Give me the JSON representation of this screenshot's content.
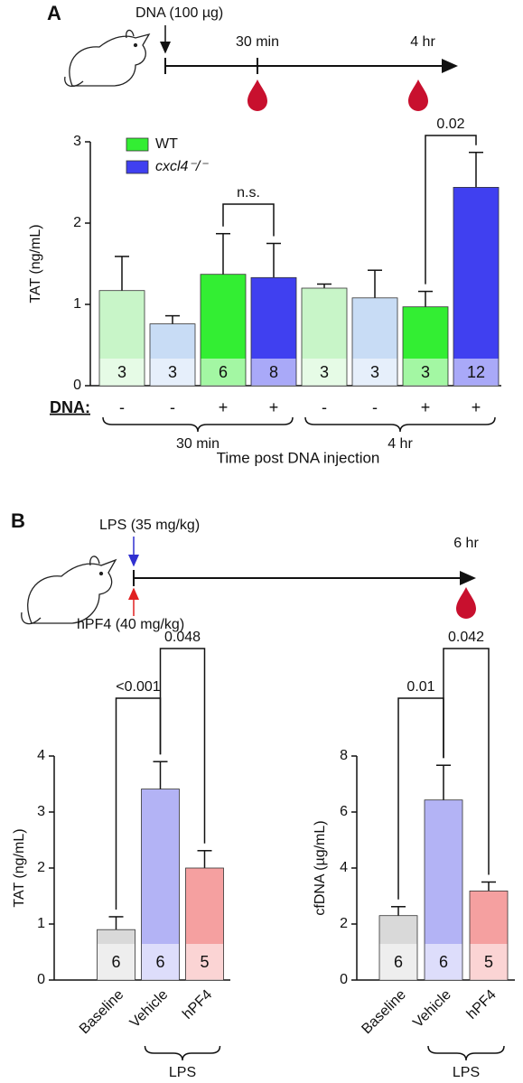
{
  "panel_a": {
    "label": "A",
    "dose": "DNA (100 µg)",
    "times": [
      "30 min",
      "4 hr"
    ]
  },
  "panel_b": {
    "label": "B",
    "lps": "LPS (35 mg/kg)",
    "hpf4": "hPF4 (40 mg/kg)",
    "time": "6 hr"
  },
  "chart_data": [
    {
      "type": "bar",
      "ylabel": "TAT (ng/mL)",
      "xlabel": "Time post DNA injection",
      "x_row_label": "DNA:",
      "categories": [
        "-",
        "-",
        "+",
        "+",
        "-",
        "-",
        "+",
        "+"
      ],
      "values": [
        1.17,
        0.76,
        1.37,
        1.33,
        1.2,
        1.08,
        0.97,
        2.44
      ],
      "errors": [
        0.42,
        0.1,
        0.5,
        0.42,
        0.05,
        0.34,
        0.19,
        0.43
      ],
      "colors": [
        "#c8f5c8",
        "#c8dcf5",
        "#33ee33",
        "#4040f0",
        "#c8f5c8",
        "#c8dcf5",
        "#33ee33",
        "#4040f0"
      ],
      "n": [
        3,
        3,
        6,
        8,
        3,
        3,
        3,
        12
      ],
      "legend": [
        {
          "name": "WT",
          "color": "#33ee33"
        },
        {
          "name": "cxcl4⁻/⁻",
          "color": "#4040f0"
        }
      ],
      "groups": [
        "30 min",
        "4 hr"
      ],
      "annotations": [
        "n.s.",
        "0.02"
      ],
      "ylim": [
        0,
        3
      ],
      "yticks": [
        0,
        1,
        2,
        3
      ]
    },
    {
      "type": "bar",
      "ylabel": "TAT (ng/mL)",
      "categories": [
        "Baseline",
        "Vehicle",
        "hPF4"
      ],
      "values": [
        0.9,
        3.41,
        2.0
      ],
      "errors": [
        0.23,
        0.49,
        0.31
      ],
      "colors": [
        "#d9d9d9",
        "#b3b3f5",
        "#f5a0a0"
      ],
      "n": [
        6,
        6,
        5
      ],
      "groups": [
        "LPS"
      ],
      "annotations": [
        "<0.001",
        "0.048"
      ],
      "ylim": [
        0,
        4
      ],
      "yticks": [
        0,
        1,
        2,
        3,
        4
      ]
    },
    {
      "type": "bar",
      "ylabel": "cfDNA (µg/mL)",
      "categories": [
        "Baseline",
        "Vehicle",
        "hPF4"
      ],
      "values": [
        2.3,
        6.43,
        3.18
      ],
      "errors": [
        0.32,
        1.24,
        0.32
      ],
      "colors": [
        "#d9d9d9",
        "#b3b3f5",
        "#f5a0a0"
      ],
      "n": [
        6,
        6,
        5
      ],
      "groups": [
        "LPS"
      ],
      "annotations": [
        "0.01",
        "0.042"
      ],
      "ylim": [
        0,
        8
      ],
      "yticks": [
        0,
        2,
        4,
        6,
        8
      ]
    }
  ]
}
